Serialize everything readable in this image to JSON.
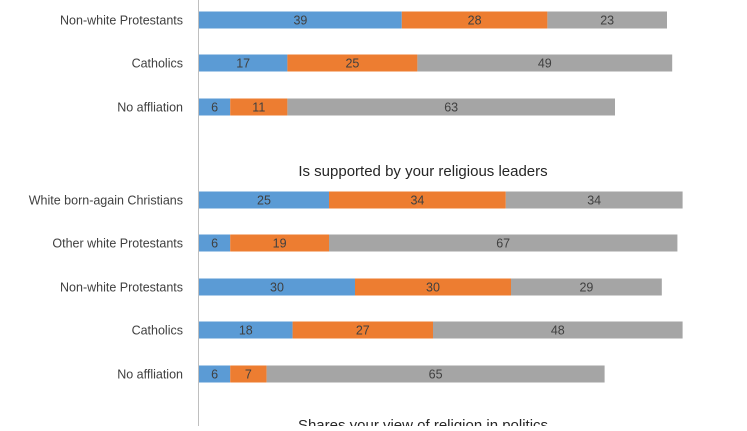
{
  "colors": {
    "blue": "#5b9bd5",
    "orange": "#ed7d31",
    "gray": "#a5a5a5",
    "axis": "#bfbfbf",
    "text": "#404040"
  },
  "chart_data": [
    {
      "type": "bar",
      "stacked": true,
      "orientation": "horizontal",
      "title": "",
      "categories": [
        "Non-white Protestants",
        "Catholics",
        "No affliation"
      ],
      "series": [
        {
          "values": [
            39,
            17,
            6
          ]
        },
        {
          "values": [
            28,
            25,
            11
          ]
        },
        {
          "values": [
            23,
            49,
            63
          ]
        }
      ]
    },
    {
      "type": "bar",
      "stacked": true,
      "orientation": "horizontal",
      "title": "Is supported by your religious leaders",
      "categories": [
        "White born-again Christians",
        "Other white Protestants",
        "Non-white Protestants",
        "Catholics",
        "No affliation"
      ],
      "series": [
        {
          "values": [
            25,
            6,
            30,
            18,
            6
          ]
        },
        {
          "values": [
            34,
            19,
            30,
            27,
            7
          ]
        },
        {
          "values": [
            34,
            67,
            29,
            48,
            65
          ]
        }
      ]
    },
    {
      "type": "bar",
      "stacked": true,
      "orientation": "horizontal",
      "title": "Shares your view of religion in politics",
      "categories": [],
      "series": []
    }
  ]
}
